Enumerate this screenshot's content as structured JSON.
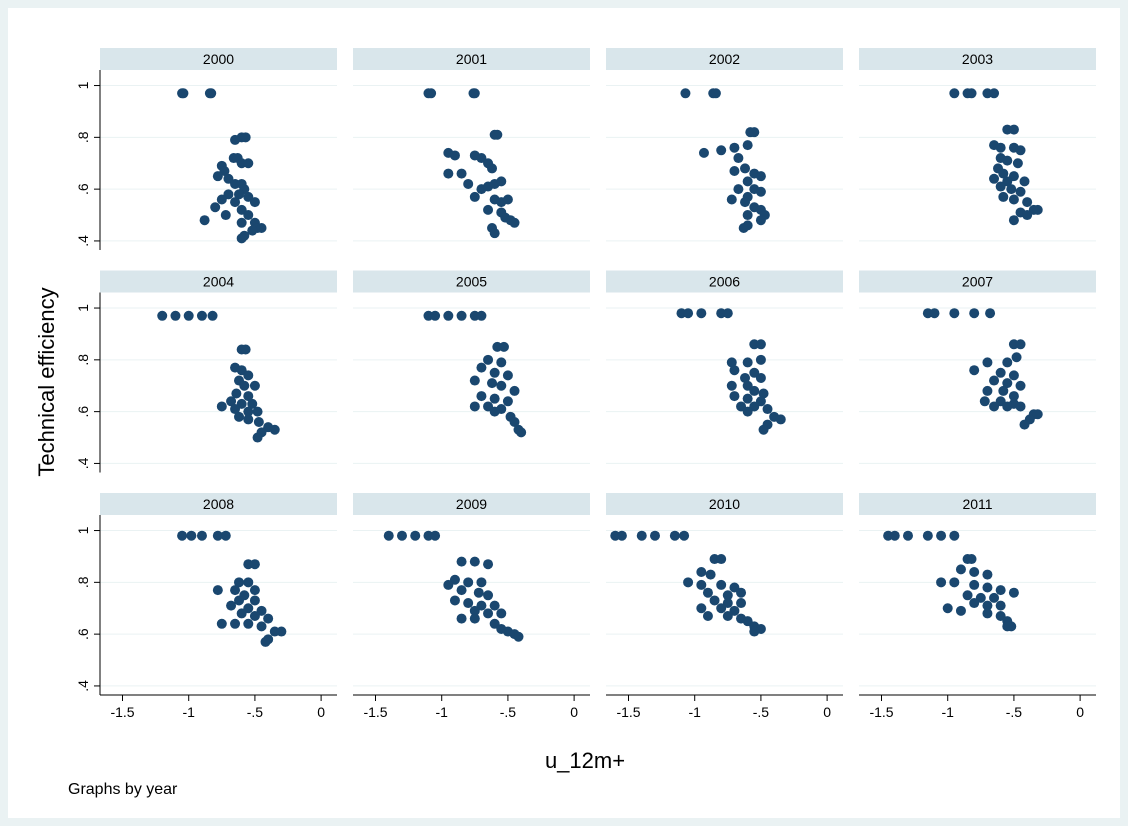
{
  "chart_data": {
    "type": "scatter",
    "ylabel": "Technical efficiency",
    "xlabel": "u_12m+",
    "note": "Graphs by year",
    "color": "#1a476f",
    "grid": true,
    "xlim": [
      -1.67,
      0.12
    ],
    "ylim": [
      0.365,
      1.06
    ],
    "xticks": [
      {
        "value": -1.5,
        "label": "-1.5"
      },
      -1,
      {
        "value": -0.5,
        "label": "-.5"
      },
      0
    ],
    "yticks": [
      {
        "value": 0.4,
        "label": ".4"
      },
      {
        "value": 0.6,
        "label": ".6"
      },
      {
        "value": 0.8,
        "label": ".8"
      },
      1
    ],
    "panels": [
      {
        "title": "2000",
        "x": [
          -1.05,
          -1.04,
          -0.83,
          -0.84,
          -0.6,
          -0.57,
          -0.65,
          -0.66,
          -0.63,
          -0.6,
          -0.55,
          -0.75,
          -0.73,
          -0.78,
          -0.7,
          -0.65,
          -0.6,
          -0.58,
          -0.62,
          -0.7,
          -0.75,
          -0.55,
          -0.5,
          -0.65,
          -0.8,
          -0.88,
          -0.72,
          -0.6,
          -0.55,
          -0.6,
          -0.5,
          -0.48,
          -0.45,
          -0.58,
          -0.6,
          -0.52
        ],
        "y": [
          0.97,
          0.97,
          0.97,
          0.97,
          0.8,
          0.8,
          0.79,
          0.72,
          0.72,
          0.7,
          0.7,
          0.69,
          0.67,
          0.65,
          0.64,
          0.62,
          0.62,
          0.6,
          0.58,
          0.58,
          0.56,
          0.57,
          0.55,
          0.55,
          0.53,
          0.48,
          0.5,
          0.52,
          0.5,
          0.47,
          0.47,
          0.45,
          0.45,
          0.42,
          0.41,
          0.44
        ]
      },
      {
        "title": "2001",
        "x": [
          -1.1,
          -1.08,
          -0.76,
          -0.75,
          -0.6,
          -0.58,
          -0.95,
          -0.9,
          -0.75,
          -0.7,
          -0.65,
          -0.62,
          -0.95,
          -0.85,
          -0.8,
          -0.7,
          -0.65,
          -0.6,
          -0.55,
          -0.75,
          -0.6,
          -0.55,
          -0.5,
          -0.65,
          -0.55,
          -0.52,
          -0.48,
          -0.45,
          -0.62,
          -0.6
        ],
        "y": [
          0.97,
          0.97,
          0.97,
          0.97,
          0.81,
          0.81,
          0.74,
          0.73,
          0.73,
          0.72,
          0.7,
          0.68,
          0.66,
          0.66,
          0.62,
          0.6,
          0.61,
          0.62,
          0.63,
          0.57,
          0.56,
          0.55,
          0.56,
          0.52,
          0.51,
          0.49,
          0.48,
          0.47,
          0.45,
          0.43
        ]
      },
      {
        "title": "2002",
        "x": [
          -1.07,
          -0.86,
          -0.84,
          -0.58,
          -0.55,
          -0.6,
          -0.7,
          -0.8,
          -0.93,
          -0.67,
          -0.62,
          -0.7,
          -0.55,
          -0.5,
          -0.6,
          -0.67,
          -0.55,
          -0.5,
          -0.6,
          -0.72,
          -0.62,
          -0.55,
          -0.5,
          -0.6,
          -0.47,
          -0.5,
          -0.6,
          -0.63
        ],
        "y": [
          0.97,
          0.97,
          0.97,
          0.82,
          0.82,
          0.77,
          0.76,
          0.75,
          0.74,
          0.72,
          0.68,
          0.67,
          0.66,
          0.65,
          0.63,
          0.6,
          0.6,
          0.59,
          0.57,
          0.56,
          0.55,
          0.53,
          0.52,
          0.5,
          0.5,
          0.48,
          0.46,
          0.45
        ]
      },
      {
        "title": "2003",
        "x": [
          -0.95,
          -0.85,
          -0.82,
          -0.7,
          -0.65,
          -0.55,
          -0.5,
          -0.65,
          -0.6,
          -0.5,
          -0.45,
          -0.6,
          -0.55,
          -0.47,
          -0.62,
          -0.58,
          -0.5,
          -0.65,
          -0.55,
          -0.42,
          -0.6,
          -0.52,
          -0.45,
          -0.58,
          -0.5,
          -0.4,
          -0.35,
          -0.32,
          -0.45,
          -0.4,
          -0.5
        ],
        "y": [
          0.97,
          0.97,
          0.97,
          0.97,
          0.97,
          0.83,
          0.83,
          0.77,
          0.76,
          0.76,
          0.75,
          0.72,
          0.71,
          0.7,
          0.68,
          0.66,
          0.65,
          0.64,
          0.63,
          0.63,
          0.61,
          0.6,
          0.59,
          0.57,
          0.56,
          0.55,
          0.52,
          0.52,
          0.51,
          0.5,
          0.48
        ]
      },
      {
        "title": "2004",
        "x": [
          -1.2,
          -1.1,
          -1.0,
          -0.9,
          -0.82,
          -0.6,
          -0.57,
          -0.65,
          -0.6,
          -0.55,
          -0.62,
          -0.58,
          -0.5,
          -0.64,
          -0.55,
          -0.68,
          -0.6,
          -0.52,
          -0.75,
          -0.65,
          -0.55,
          -0.48,
          -0.62,
          -0.55,
          -0.47,
          -0.4,
          -0.35,
          -0.45,
          -0.48
        ],
        "y": [
          0.97,
          0.97,
          0.97,
          0.97,
          0.97,
          0.84,
          0.84,
          0.77,
          0.76,
          0.74,
          0.72,
          0.7,
          0.7,
          0.67,
          0.66,
          0.64,
          0.63,
          0.63,
          0.62,
          0.61,
          0.6,
          0.6,
          0.58,
          0.57,
          0.56,
          0.54,
          0.53,
          0.52,
          0.5
        ]
      },
      {
        "title": "2005",
        "x": [
          -1.1,
          -1.05,
          -0.95,
          -0.85,
          -0.75,
          -0.7,
          -0.58,
          -0.53,
          -0.65,
          -0.55,
          -0.7,
          -0.6,
          -0.5,
          -0.75,
          -0.62,
          -0.55,
          -0.45,
          -0.7,
          -0.6,
          -0.5,
          -0.75,
          -0.65,
          -0.55,
          -0.6,
          -0.48,
          -0.45,
          -0.42,
          -0.4
        ],
        "y": [
          0.97,
          0.97,
          0.97,
          0.97,
          0.97,
          0.97,
          0.85,
          0.85,
          0.8,
          0.79,
          0.77,
          0.75,
          0.74,
          0.72,
          0.71,
          0.7,
          0.68,
          0.66,
          0.65,
          0.64,
          0.62,
          0.62,
          0.61,
          0.6,
          0.58,
          0.56,
          0.53,
          0.52
        ]
      },
      {
        "title": "2006",
        "x": [
          -1.1,
          -1.05,
          -0.95,
          -0.8,
          -0.75,
          -0.55,
          -0.5,
          -0.72,
          -0.6,
          -0.5,
          -0.7,
          -0.55,
          -0.62,
          -0.5,
          -0.72,
          -0.6,
          -0.55,
          -0.48,
          -0.7,
          -0.6,
          -0.5,
          -0.65,
          -0.55,
          -0.45,
          -0.6,
          -0.4,
          -0.35,
          -0.45,
          -0.48
        ],
        "y": [
          0.98,
          0.98,
          0.98,
          0.98,
          0.98,
          0.86,
          0.86,
          0.79,
          0.79,
          0.8,
          0.76,
          0.75,
          0.73,
          0.73,
          0.7,
          0.7,
          0.68,
          0.67,
          0.66,
          0.65,
          0.64,
          0.62,
          0.62,
          0.61,
          0.6,
          0.58,
          0.57,
          0.55,
          0.53
        ]
      },
      {
        "title": "2007",
        "x": [
          -1.15,
          -1.1,
          -0.95,
          -0.8,
          -0.68,
          -0.5,
          -0.45,
          -0.7,
          -0.55,
          -0.48,
          -0.8,
          -0.6,
          -0.5,
          -0.65,
          -0.55,
          -0.45,
          -0.7,
          -0.58,
          -0.5,
          -0.72,
          -0.6,
          -0.5,
          -0.65,
          -0.55,
          -0.45,
          -0.35,
          -0.32,
          -0.38,
          -0.42
        ],
        "y": [
          0.98,
          0.98,
          0.98,
          0.98,
          0.98,
          0.86,
          0.86,
          0.79,
          0.79,
          0.81,
          0.76,
          0.75,
          0.74,
          0.72,
          0.71,
          0.7,
          0.68,
          0.68,
          0.66,
          0.64,
          0.64,
          0.63,
          0.62,
          0.62,
          0.62,
          0.59,
          0.59,
          0.57,
          0.55
        ]
      },
      {
        "title": "2008",
        "x": [
          -1.05,
          -0.98,
          -0.9,
          -0.78,
          -0.72,
          -0.55,
          -0.5,
          -0.62,
          -0.55,
          -0.78,
          -0.65,
          -0.5,
          -0.58,
          -0.62,
          -0.5,
          -0.68,
          -0.55,
          -0.45,
          -0.6,
          -0.5,
          -0.4,
          -0.75,
          -0.65,
          -0.55,
          -0.45,
          -0.35,
          -0.3,
          -0.4,
          -0.42
        ],
        "y": [
          0.98,
          0.98,
          0.98,
          0.98,
          0.98,
          0.87,
          0.87,
          0.8,
          0.8,
          0.77,
          0.77,
          0.77,
          0.75,
          0.73,
          0.73,
          0.71,
          0.7,
          0.69,
          0.68,
          0.67,
          0.66,
          0.64,
          0.64,
          0.64,
          0.63,
          0.61,
          0.61,
          0.58,
          0.57
        ]
      },
      {
        "title": "2009",
        "x": [
          -1.4,
          -1.3,
          -1.2,
          -1.1,
          -1.05,
          -0.85,
          -0.75,
          -0.65,
          -0.9,
          -0.8,
          -0.7,
          -0.95,
          -0.85,
          -0.72,
          -0.65,
          -0.9,
          -0.8,
          -0.7,
          -0.6,
          -0.75,
          -0.65,
          -0.55,
          -0.85,
          -0.75,
          -0.6,
          -0.55,
          -0.5,
          -0.45,
          -0.42
        ],
        "y": [
          0.98,
          0.98,
          0.98,
          0.98,
          0.98,
          0.88,
          0.88,
          0.87,
          0.81,
          0.8,
          0.8,
          0.79,
          0.77,
          0.76,
          0.75,
          0.73,
          0.72,
          0.71,
          0.71,
          0.69,
          0.68,
          0.68,
          0.66,
          0.66,
          0.64,
          0.62,
          0.61,
          0.6,
          0.59
        ]
      },
      {
        "title": "2010",
        "x": [
          -1.6,
          -1.55,
          -1.4,
          -1.3,
          -1.15,
          -1.08,
          -0.85,
          -0.8,
          -0.95,
          -0.88,
          -1.05,
          -0.95,
          -0.8,
          -0.7,
          -0.9,
          -0.75,
          -0.65,
          -0.85,
          -0.75,
          -0.65,
          -0.95,
          -0.8,
          -0.7,
          -0.9,
          -0.75,
          -0.65,
          -0.6,
          -0.55,
          -0.5,
          -0.55
        ],
        "y": [
          0.98,
          0.98,
          0.98,
          0.98,
          0.98,
          0.98,
          0.89,
          0.89,
          0.84,
          0.83,
          0.8,
          0.79,
          0.79,
          0.78,
          0.76,
          0.75,
          0.76,
          0.73,
          0.72,
          0.72,
          0.7,
          0.7,
          0.69,
          0.67,
          0.67,
          0.66,
          0.65,
          0.63,
          0.62,
          0.61
        ]
      },
      {
        "title": "2011",
        "x": [
          -1.45,
          -1.4,
          -1.3,
          -1.15,
          -1.05,
          -0.95,
          -0.85,
          -0.82,
          -0.9,
          -0.8,
          -0.7,
          -1.05,
          -0.95,
          -0.8,
          -0.7,
          -0.6,
          -0.5,
          -0.85,
          -0.75,
          -0.65,
          -0.8,
          -0.7,
          -0.6,
          -1.0,
          -0.9,
          -0.7,
          -0.6,
          -0.55,
          -0.52,
          -0.55
        ],
        "y": [
          0.98,
          0.98,
          0.98,
          0.98,
          0.98,
          0.98,
          0.89,
          0.89,
          0.85,
          0.84,
          0.83,
          0.8,
          0.8,
          0.79,
          0.78,
          0.77,
          0.76,
          0.75,
          0.74,
          0.74,
          0.72,
          0.71,
          0.71,
          0.7,
          0.69,
          0.68,
          0.67,
          0.65,
          0.63,
          0.63
        ]
      }
    ]
  }
}
